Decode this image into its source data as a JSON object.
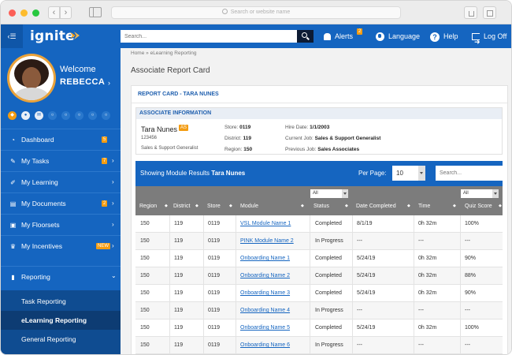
{
  "browser": {
    "url_placeholder": "Search or website name"
  },
  "header": {
    "logo_text": "ignite",
    "search_placeholder": "Search...",
    "alerts_label": "Alerts",
    "alerts_count": "2",
    "language_label": "Language",
    "help_label": "Help",
    "logoff_label": "Log Off",
    "accent_color": "#1565c0",
    "badge_color": "#f39c12"
  },
  "profile": {
    "welcome": "Welcome",
    "name": "REBECCA"
  },
  "sidebar": {
    "items": [
      {
        "label": "Dashboard",
        "icon": "dashboard-icon",
        "count": "5"
      },
      {
        "label": "My Tasks",
        "icon": "edit-icon",
        "count": "7"
      },
      {
        "label": "My Learning",
        "icon": "pencil-icon"
      },
      {
        "label": "My Documents",
        "icon": "document-icon",
        "count": "2"
      },
      {
        "label": "My Floorsets",
        "icon": "floorset-icon"
      },
      {
        "label": "My Incentives",
        "icon": "trophy-icon",
        "count": "NEW"
      },
      {
        "label": "Reporting",
        "icon": "bar-chart-icon"
      }
    ],
    "sub_items": [
      {
        "label": "Task Reporting"
      },
      {
        "label": "eLearning Reporting"
      },
      {
        "label": "General Reporting"
      }
    ]
  },
  "breadcrumb": {
    "home": "Home",
    "current": "eLearning Reporting"
  },
  "page_title": "Associate Report Card",
  "report": {
    "title": "REPORT CARD - TARA NUNES",
    "section_title": "ASSOCIATE INFORMATION",
    "associate": {
      "name": "Tara Nunes",
      "tag": "AS",
      "id": "123456",
      "role": "Sales & Support Generalist",
      "store_label": "Store:",
      "store": "0119",
      "district_label": "District:",
      "district": "119",
      "region_label": "Region:",
      "region": "150",
      "hire_label": "Hire Date:",
      "hire_date": "1/1/2003",
      "current_job_label": "Current Job:",
      "current_job": "Sales & Support Generalist",
      "previous_job_label": "Previous Job:",
      "previous_job": "Sales Associates"
    }
  },
  "results": {
    "showing_text": "Showing Module Results",
    "showing_name": "Tara Nunes",
    "per_page_label": "Per Page:",
    "per_page_value": "10",
    "search_placeholder": "Search...",
    "status_filter": "All",
    "quiz_filter": "All",
    "columns": [
      "Region",
      "District",
      "Store",
      "Module",
      "Status",
      "Date Completed",
      "Time",
      "Quiz Score"
    ],
    "rows": [
      {
        "region": "150",
        "district": "119",
        "store": "0119",
        "module": "VSL Module Name 1",
        "status": "Completed",
        "date": "8/1/19",
        "time": "0h 32m",
        "score": "100%"
      },
      {
        "region": "150",
        "district": "119",
        "store": "0119",
        "module": "PINK Module Name 2",
        "status": "In Progress",
        "date": "---",
        "time": "---",
        "score": "---"
      },
      {
        "region": "150",
        "district": "119",
        "store": "0119",
        "module": "Onboarding Name 1",
        "status": "Completed",
        "date": "5/24/19",
        "time": "0h 32m",
        "score": "90%"
      },
      {
        "region": "150",
        "district": "119",
        "store": "0119",
        "module": "Onboarding Name 2",
        "status": "Completed",
        "date": "5/24/19",
        "time": "0h 32m",
        "score": "88%"
      },
      {
        "region": "150",
        "district": "119",
        "store": "0119",
        "module": "Onboarding Name 3",
        "status": "Completed",
        "date": "5/24/19",
        "time": "0h 32m",
        "score": "90%"
      },
      {
        "region": "150",
        "district": "119",
        "store": "0119",
        "module": "Onboarding Name 4",
        "status": "In Progress",
        "date": "---",
        "time": "---",
        "score": "---"
      },
      {
        "region": "150",
        "district": "119",
        "store": "0119",
        "module": "Onboarding Name 5",
        "status": "Completed",
        "date": "5/24/19",
        "time": "0h 32m",
        "score": "100%"
      },
      {
        "region": "150",
        "district": "119",
        "store": "0119",
        "module": "Onboarding Name 6",
        "status": "In Progress",
        "date": "---",
        "time": "---",
        "score": "---"
      }
    ]
  }
}
